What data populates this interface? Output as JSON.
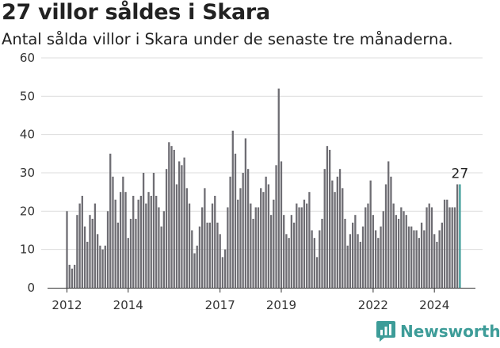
{
  "title": "27 villor såldes i Skara",
  "subtitle": "Antal sålda villor i Skara under de senaste tre månaderna.",
  "brand": "Newsworthy",
  "colors": {
    "bar": "#6e6d73",
    "highlight": "#3d9c98",
    "text": "#222222"
  },
  "chart_data": {
    "type": "bar",
    "title": "27 villor såldes i Skara",
    "subtitle": "Antal sålda villor i Skara under de senaste tre månaderna.",
    "ylim": [
      0,
      60
    ],
    "yticks": [
      0,
      10,
      20,
      30,
      40,
      50,
      60
    ],
    "xlabel": "",
    "ylabel": "",
    "start": "2012-01",
    "xticks": [
      {
        "label": "2012",
        "date": "2012-01"
      },
      {
        "label": "2014",
        "date": "2014-01"
      },
      {
        "label": "2017",
        "date": "2017-01"
      },
      {
        "label": "2019",
        "date": "2019-01"
      },
      {
        "label": "2022",
        "date": "2022-01"
      },
      {
        "label": "2024",
        "date": "2024-01"
      }
    ],
    "values": [
      20,
      6,
      5,
      6,
      19,
      22,
      24,
      16,
      12,
      19,
      18,
      22,
      14,
      11,
      10,
      11,
      20,
      35,
      29,
      23,
      17,
      25,
      29,
      25,
      13,
      18,
      24,
      18,
      23,
      24,
      30,
      22,
      25,
      24,
      30,
      24,
      21,
      16,
      20,
      31,
      38,
      37,
      36,
      27,
      33,
      32,
      34,
      26,
      22,
      15,
      9,
      11,
      16,
      21,
      26,
      17,
      17,
      22,
      24,
      17,
      14,
      8,
      10,
      21,
      29,
      41,
      35,
      23,
      26,
      30,
      39,
      31,
      22,
      18,
      21,
      21,
      26,
      25,
      29,
      27,
      19,
      23,
      32,
      52,
      33,
      19,
      14,
      13,
      19,
      17,
      22,
      21,
      21,
      23,
      22,
      25,
      15,
      13,
      8,
      15,
      18,
      31,
      37,
      36,
      28,
      25,
      29,
      31,
      26,
      18,
      11,
      14,
      17,
      19,
      14,
      12,
      16,
      21,
      22,
      28,
      19,
      15,
      13,
      16,
      20,
      27,
      33,
      29,
      22,
      19,
      18,
      21,
      20,
      19,
      16,
      16,
      15,
      15,
      13,
      17,
      15,
      21,
      22,
      21,
      14,
      12,
      15,
      17,
      23,
      23,
      21,
      21,
      21,
      27,
      27
    ],
    "highlight_last": true,
    "annotation": {
      "text": "27",
      "index": 154
    }
  }
}
